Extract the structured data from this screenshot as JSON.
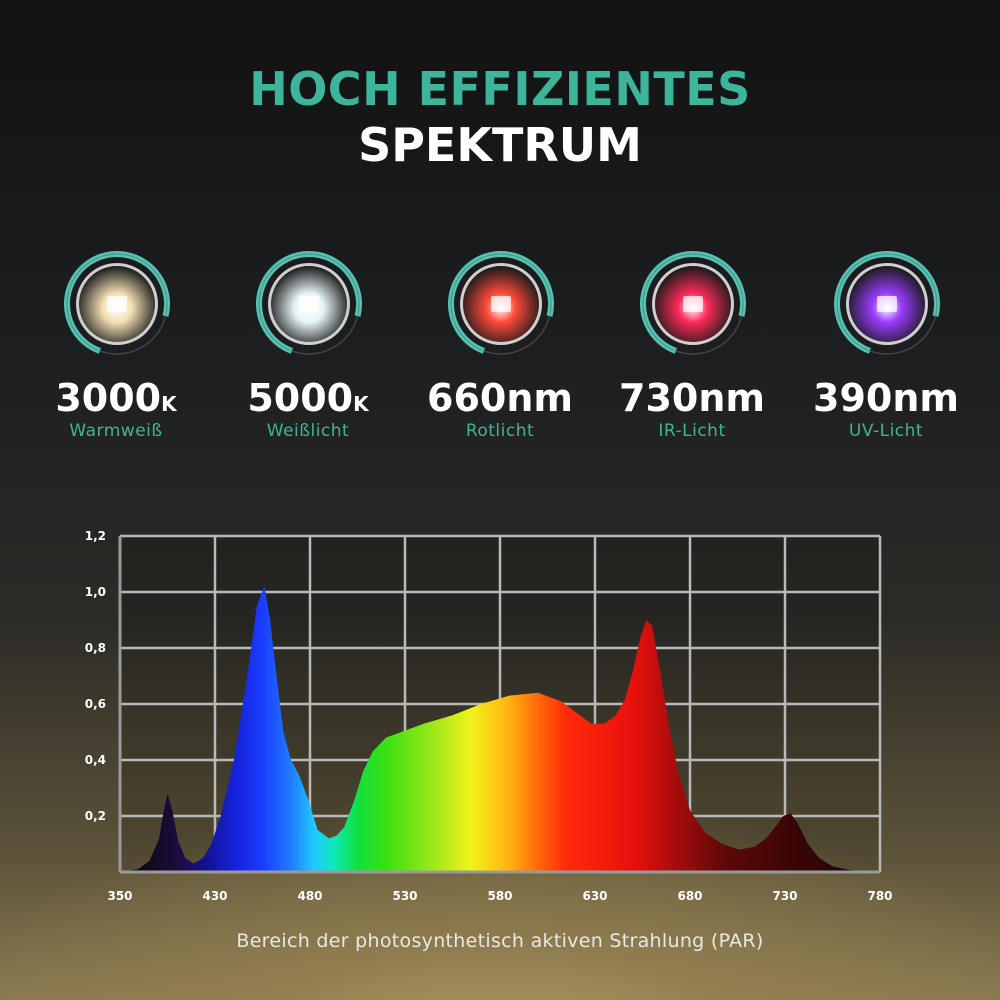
{
  "header": {
    "line1": "HOCH EFFIZIENTES",
    "line2": "SPEKTRUM",
    "line1_color": "#3db59a",
    "line2_color": "#ffffff"
  },
  "badges": [
    {
      "value": "3000",
      "unit": "K",
      "label": "Warmweiß",
      "label_color": "#3db59a",
      "glow": "#f2e0b4",
      "ring": "#4fc6b4",
      "icon": "warm-white-led-icon"
    },
    {
      "value": "5000",
      "unit": "K",
      "label": "Weißlicht",
      "label_color": "#3db59a",
      "glow": "#e6f4f6",
      "ring": "#4fc6b4",
      "icon": "white-led-icon"
    },
    {
      "value": "660nm",
      "unit": "",
      "label": "Rotlicht",
      "label_color": "#3db59a",
      "glow": "#ff4a3a",
      "ring": "#4fc6b4",
      "icon": "red-led-icon"
    },
    {
      "value": "730nm",
      "unit": "",
      "label": "IR-Licht",
      "label_color": "#3db59a",
      "glow": "#ff2a5a",
      "ring": "#4fc6b4",
      "icon": "ir-led-icon"
    },
    {
      "value": "390nm",
      "unit": "",
      "label": "UV-Licht",
      "label_color": "#3db59a",
      "glow": "#9a3cff",
      "ring": "#4fc6b4",
      "icon": "uv-led-icon"
    }
  ],
  "chart_data": {
    "type": "area",
    "title": "",
    "xlabel": "Bereich der photosynthetisch aktiven Strahlung (PAR)",
    "ylabel": "",
    "xlim": [
      350,
      780
    ],
    "ylim": [
      0,
      1.2
    ],
    "x_ticks": [
      "350",
      "430",
      "480",
      "530",
      "580",
      "630",
      "680",
      "730",
      "780"
    ],
    "y_ticks": [
      "1,2",
      "1,0",
      "0,8",
      "0,6",
      "0,4",
      "0,2"
    ],
    "grid": true,
    "fill": "visible-spectrum-gradient",
    "x": [
      350,
      365,
      375,
      383,
      386,
      390,
      394,
      399,
      405,
      412,
      420,
      427,
      433,
      440,
      447,
      452,
      456,
      459,
      462,
      466,
      470,
      474,
      479,
      484,
      490,
      494,
      498,
      503,
      508,
      513,
      520,
      528,
      540,
      555,
      570,
      585,
      600,
      612,
      620,
      628,
      635,
      641,
      646,
      650,
      654,
      657,
      660,
      664,
      669,
      674,
      680,
      688,
      697,
      706,
      714,
      720,
      726,
      729,
      733,
      737,
      742,
      748,
      755,
      762,
      770,
      780
    ],
    "y": [
      0,
      0.01,
      0.04,
      0.12,
      0.2,
      0.28,
      0.22,
      0.11,
      0.05,
      0.03,
      0.05,
      0.1,
      0.2,
      0.4,
      0.7,
      0.95,
      1.02,
      0.9,
      0.72,
      0.5,
      0.4,
      0.35,
      0.26,
      0.15,
      0.12,
      0.13,
      0.16,
      0.25,
      0.36,
      0.43,
      0.48,
      0.5,
      0.53,
      0.56,
      0.6,
      0.63,
      0.64,
      0.61,
      0.57,
      0.53,
      0.53,
      0.56,
      0.62,
      0.72,
      0.84,
      0.9,
      0.88,
      0.73,
      0.52,
      0.35,
      0.22,
      0.14,
      0.1,
      0.08,
      0.09,
      0.12,
      0.17,
      0.2,
      0.21,
      0.17,
      0.1,
      0.05,
      0.02,
      0.01,
      0,
      0
    ],
    "axis_color": "#9a9a9a",
    "grid_color": "#b9b9b9",
    "text_color": "#ffffff"
  },
  "caption": "Bereich der photosynthetisch aktiven Strahlung (PAR)"
}
